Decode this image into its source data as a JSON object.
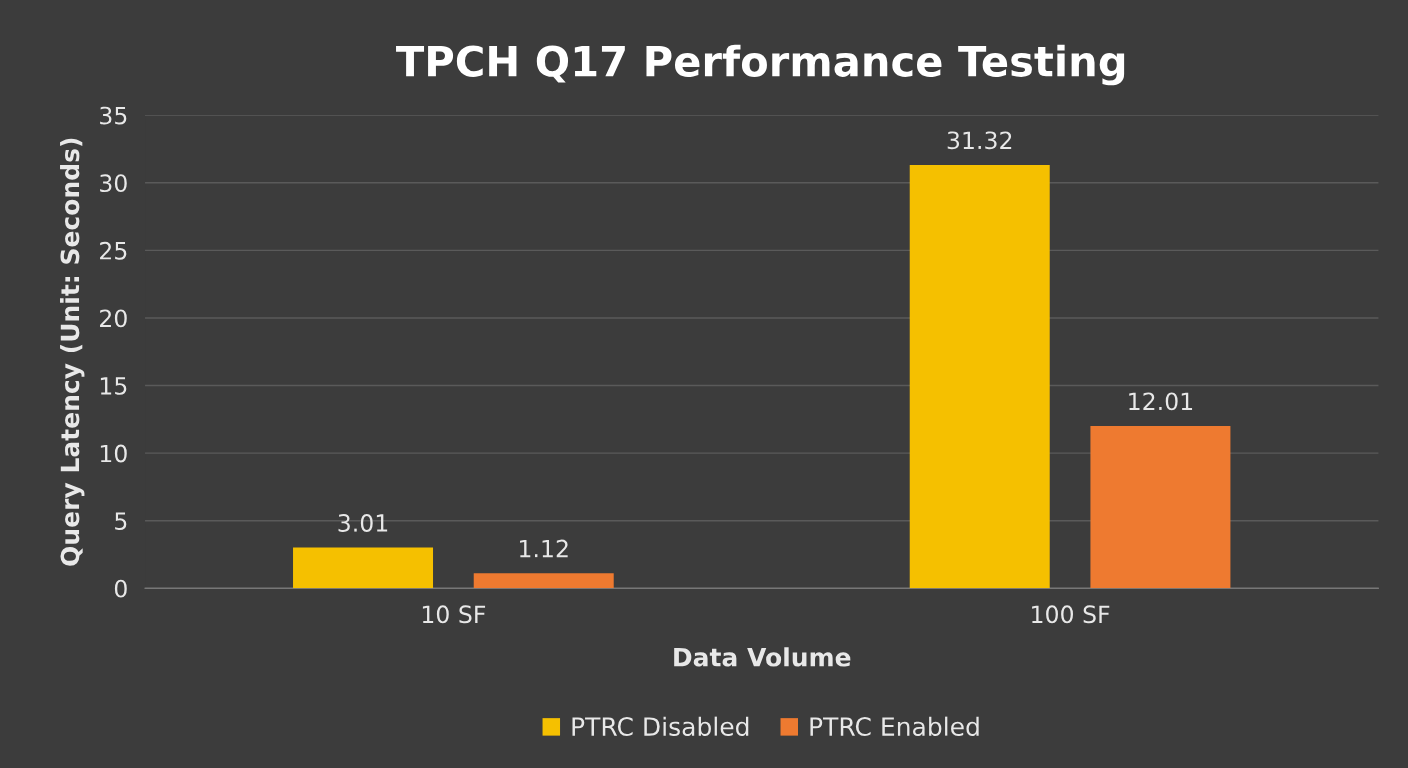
{
  "chart_data": {
    "type": "bar",
    "title": "TPCH Q17 Performance Testing",
    "xlabel": "Data Volume",
    "ylabel": "Query Latency (Unit: Seconds)",
    "categories": [
      "10 SF",
      "100 SF"
    ],
    "series": [
      {
        "name": "PTRC Disabled",
        "color": "#f5c000",
        "values": [
          3.01,
          31.32
        ]
      },
      {
        "name": "PTRC Enabled",
        "color": "#ee7a30",
        "values": [
          1.12,
          12.01
        ]
      }
    ],
    "ylim": [
      0,
      35
    ],
    "yticks": [
      0,
      5,
      10,
      15,
      20,
      25,
      30,
      35
    ],
    "grid": "y",
    "legend": "bottom",
    "data_labels": true
  }
}
